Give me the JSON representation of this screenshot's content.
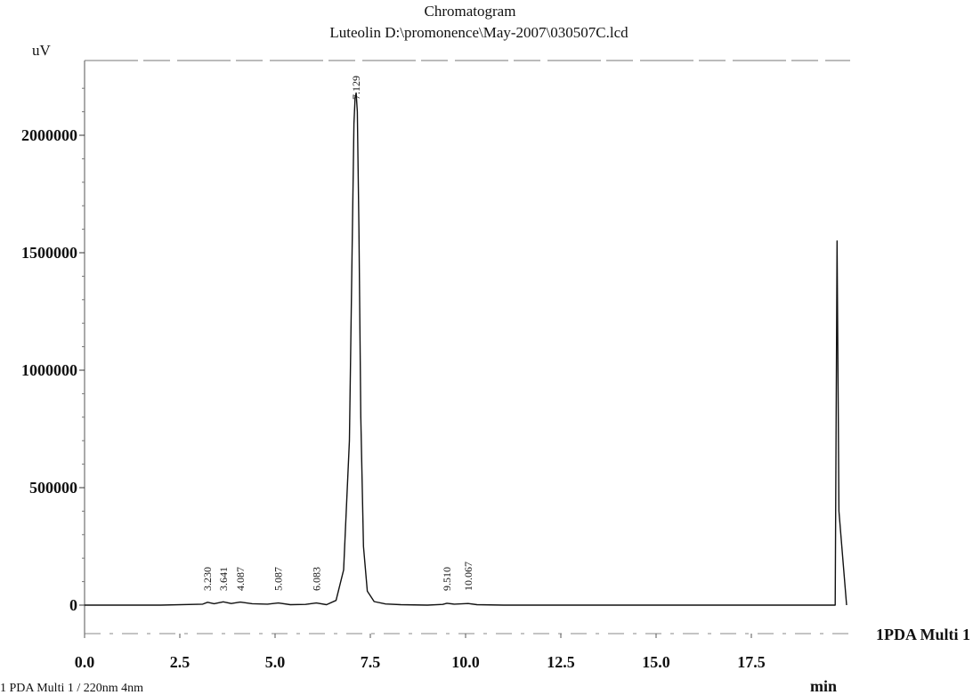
{
  "chart_data": {
    "type": "line",
    "title": "Chromatogram",
    "subtitle": "Luteolin D:\\promonence\\May-2007\\030507C.lcd",
    "ylabel": "uV",
    "xlabel": "min",
    "xlim": [
      0,
      20
    ],
    "ylim": [
      -120000,
      2300000
    ],
    "x_ticks": [
      0.0,
      2.5,
      5.0,
      7.5,
      10.0,
      12.5,
      15.0,
      17.5
    ],
    "x_tick_labels": [
      "0.0",
      "2.5",
      "5.0",
      "7.5",
      "10.0",
      "12.5",
      "15.0",
      "17.5"
    ],
    "y_ticks": [
      0,
      500000,
      1000000,
      1500000,
      2000000
    ],
    "y_tick_labels": [
      "0",
      "500000",
      "1000000",
      "1500000",
      "2000000"
    ],
    "legend": "1PDA Multi 1",
    "footer_label": "1 PDA Multi 1 / 220nm 4nm",
    "grid": false,
    "series": [
      {
        "x": [
          0.0,
          2.0,
          3.1,
          3.23,
          3.4,
          3.641,
          3.85,
          4.087,
          4.4,
          4.8,
          5.087,
          5.4,
          5.8,
          6.083,
          6.35,
          6.6,
          6.8,
          6.95,
          7.02,
          7.07,
          7.1,
          7.129,
          7.16,
          7.2,
          7.25,
          7.32,
          7.42,
          7.6,
          7.9,
          8.3,
          9.0,
          9.4,
          9.51,
          9.7,
          10.067,
          10.3,
          11.0,
          13.0,
          16.0,
          19.7,
          19.72,
          19.75,
          19.8,
          20.0
        ],
        "y": [
          0,
          0,
          4000,
          12000,
          6000,
          14000,
          7000,
          13000,
          6000,
          4000,
          9000,
          2000,
          3000,
          9000,
          2000,
          20000,
          150000,
          700000,
          1500000,
          2050000,
          2160000,
          2180000,
          2100000,
          1600000,
          800000,
          250000,
          60000,
          15000,
          5000,
          2000,
          0,
          3000,
          8000,
          4000,
          7000,
          2000,
          0,
          0,
          0,
          0,
          600000,
          1550000,
          400000,
          0
        ]
      }
    ],
    "peaks": [
      {
        "x": 3.23,
        "label": "3.230"
      },
      {
        "x": 3.641,
        "label": "3.641"
      },
      {
        "x": 4.087,
        "label": "4.087"
      },
      {
        "x": 5.087,
        "label": "5.087"
      },
      {
        "x": 6.083,
        "label": "6.083"
      },
      {
        "x": 7.129,
        "label": "7.129"
      },
      {
        "x": 9.51,
        "label": "9.510"
      },
      {
        "x": 10.067,
        "label": "10.067"
      }
    ]
  }
}
